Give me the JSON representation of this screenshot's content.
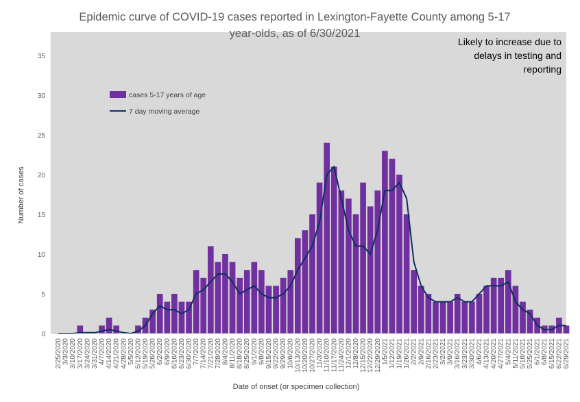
{
  "chart_data": {
    "type": "bar",
    "title_lines": [
      "Epidemic curve of COVID-19 cases reported in Lexington-Fayette County among 5-17",
      "year-olds, as of 6/30/2021"
    ],
    "xlabel": "Date of onset (or specimen collection)",
    "ylabel": "Number of cases",
    "ylim": [
      0,
      35
    ],
    "yticks": [
      0,
      5,
      10,
      15,
      20,
      25,
      30,
      35
    ],
    "grid": false,
    "legend_position": "upper-left (inside plot)",
    "x_ticks": [
      "2/25/2020",
      "3/3/2020",
      "3/10/2020",
      "3/17/2020",
      "3/24/2020",
      "3/31/2020",
      "4/7/2020",
      "4/14/2020",
      "4/21/2020",
      "4/28/2020",
      "5/5/2020",
      "5/12/2020",
      "5/19/2020",
      "5/26/2020",
      "6/2/2020",
      "6/9/2020",
      "6/16/2020",
      "6/23/2020",
      "6/30/2020",
      "7/7/2020",
      "7/14/2020",
      "7/21/2020",
      "7/28/2020",
      "8/4/2020",
      "8/11/2020",
      "8/18/2020",
      "8/25/2020",
      "9/1/2020",
      "9/8/2020",
      "9/15/2020",
      "9/22/2020",
      "9/29/2020",
      "10/6/2020",
      "10/13/2020",
      "10/20/2020",
      "10/27/2020",
      "11/3/2020",
      "11/10/2020",
      "11/17/2020",
      "11/24/2020",
      "12/1/2020",
      "12/8/2020",
      "12/15/2020",
      "12/22/2020",
      "12/29/2020",
      "1/5/2021",
      "1/12/2021",
      "1/19/2021",
      "1/26/2021",
      "2/2/2021",
      "2/9/2021",
      "2/16/2021",
      "2/23/2021",
      "3/2/2021",
      "3/9/2021",
      "3/16/2021",
      "3/23/2021",
      "3/30/2021",
      "4/6/2021",
      "4/13/2021",
      "4/20/2021",
      "4/27/2021",
      "5/4/2021",
      "5/11/2021",
      "5/18/2021",
      "5/25/2021",
      "6/1/2021",
      "6/8/2021",
      "6/15/2021",
      "6/22/2021",
      "6/29/2021"
    ],
    "series": [
      {
        "name": "cases 5-17 years of age",
        "color": "#7030a0",
        "weekly_values": [
          0,
          0,
          0,
          1,
          0,
          0,
          1,
          2,
          1,
          0,
          0,
          1,
          2,
          3,
          5,
          4,
          5,
          4,
          4,
          8,
          7,
          11,
          9,
          10,
          9,
          7,
          8,
          9,
          8,
          6,
          6,
          7,
          8,
          12,
          13,
          15,
          19,
          24,
          21,
          18,
          17,
          15,
          19,
          16,
          18,
          23,
          22,
          20,
          15,
          8,
          6,
          5,
          4,
          4,
          4,
          5,
          4,
          4,
          5,
          6,
          7,
          7,
          8,
          6,
          4,
          3,
          2,
          1,
          1,
          2,
          1
        ]
      },
      {
        "name": "7 day moving average",
        "color": "#0e2e5f",
        "weekly_values": [
          0,
          0,
          0,
          0.1,
          0.1,
          0.1,
          0.3,
          0.5,
          0.3,
          0.1,
          0,
          0.3,
          1,
          2.5,
          3.5,
          3,
          3,
          2.5,
          3,
          5,
          5.5,
          6.5,
          7.5,
          7.5,
          6.5,
          5,
          5.5,
          6,
          5,
          4.5,
          4.5,
          5,
          6,
          8,
          9.5,
          11,
          14,
          20,
          21,
          17,
          13,
          11,
          11,
          10,
          13,
          18,
          18,
          19,
          17,
          9,
          6,
          4.5,
          4,
          4,
          4,
          4.5,
          4,
          4,
          5,
          6,
          6,
          6,
          6.5,
          4,
          3,
          2.5,
          1,
          0.5,
          0.5,
          1,
          1
        ]
      }
    ],
    "annotation": {
      "lines": [
        "Likely to increase due to",
        "delays in testing and",
        "reporting"
      ],
      "shaded_range": [
        "6/23/2021",
        "6/29/2021"
      ],
      "shade_color": "#d9d9d9"
    }
  }
}
